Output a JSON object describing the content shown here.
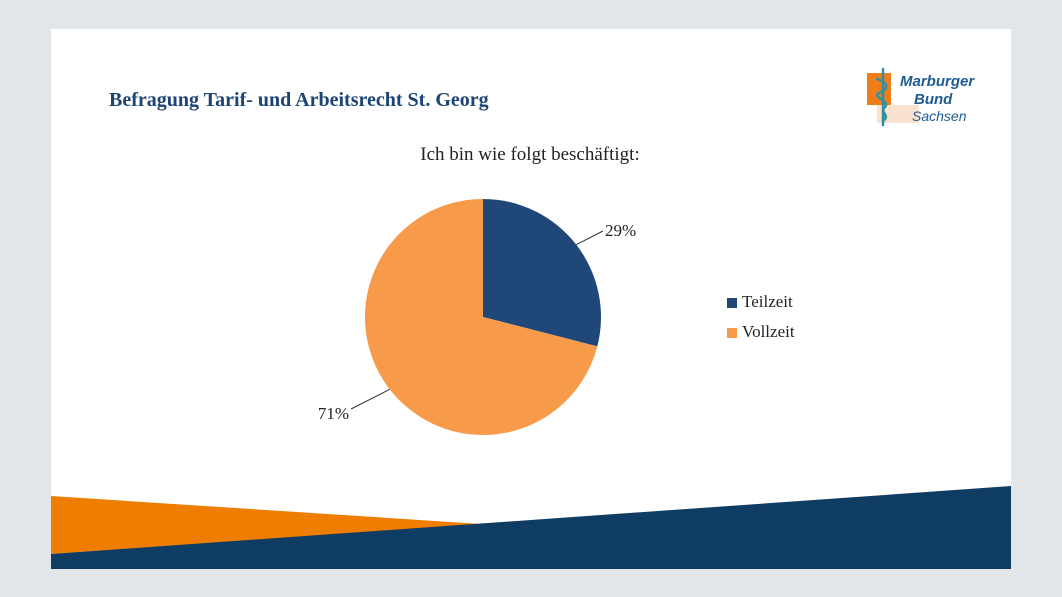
{
  "header": {
    "title": "Befragung Tarif- und Arbeitsrecht St. Georg"
  },
  "logo": {
    "line1": "Marburger",
    "line2": "Bund",
    "line3": "Sachsen",
    "colors": {
      "blue": "#1e5b94",
      "orange": "#ef7d1a",
      "peach": "#fbe2cf",
      "teal": "#2f8fa3"
    }
  },
  "chart_data": {
    "type": "pie",
    "title": "Ich bin wie folgt beschäftigt:",
    "categories": [
      "Teilzeit",
      "Vollzeit"
    ],
    "values": [
      29,
      71
    ],
    "data_labels": [
      "29%",
      "71%"
    ],
    "colors": [
      "#1f4778",
      "#f79a4a"
    ],
    "legend_position": "right"
  },
  "footer": {
    "colors": {
      "orange": "#ef7d00",
      "navy": "#0f3c63"
    }
  }
}
